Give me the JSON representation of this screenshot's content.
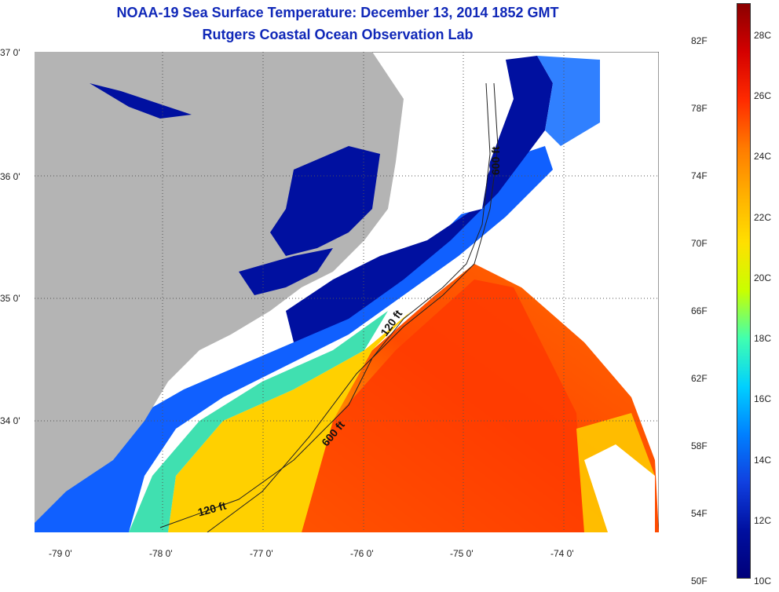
{
  "title": {
    "line1": "NOAA-19 Sea Surface Temperature:  December 13, 2014 1852 GMT",
    "line2": "Rutgers Coastal Ocean Observation Lab"
  },
  "map": {
    "lat_labels": [
      "37 0'",
      "36 0'",
      "35 0'",
      "34 0'"
    ],
    "lon_labels": [
      "-79 0'",
      "-78 0'",
      "-77 0'",
      "-76 0'",
      "-75 0'",
      "-74 0'"
    ],
    "contours": [
      "600 ft",
      "120 ft",
      "600 ft",
      "120 ft"
    ]
  },
  "colorbar": {
    "fahrenheit_labels": [
      "82F",
      "78F",
      "74F",
      "70F",
      "66F",
      "62F",
      "58F",
      "54F",
      "50F"
    ],
    "celsius_labels": [
      "28C",
      "26C",
      "24C",
      "22C",
      "20C",
      "18C",
      "16C",
      "14C",
      "12C",
      "10C"
    ],
    "colors": [
      "#8b0000",
      "#d40000",
      "#ff2a00",
      "#ff7a00",
      "#ffb000",
      "#ffe000",
      "#c8ff00",
      "#40ffb0",
      "#00d0ff",
      "#0080ff",
      "#1040e0",
      "#0010a0",
      "#00007a"
    ]
  },
  "colors": {
    "land": "#b4b4b4",
    "cloud": "#ffffff",
    "title": "#1028b8"
  }
}
